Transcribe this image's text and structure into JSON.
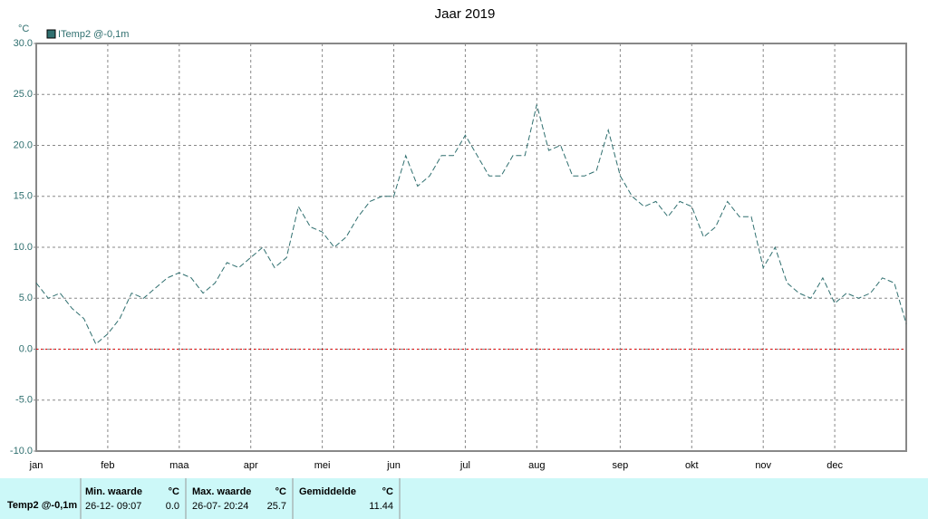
{
  "chart_data": {
    "type": "line",
    "title": "Jaar 2019",
    "y_unit": "°C",
    "categories": [
      "jan",
      null,
      null,
      null,
      null,
      null,
      "feb",
      null,
      null,
      null,
      null,
      null,
      "maa",
      null,
      null,
      null,
      null,
      null,
      "apr",
      null,
      null,
      null,
      null,
      null,
      "mei",
      null,
      null,
      null,
      null,
      null,
      "jun",
      null,
      null,
      null,
      null,
      null,
      "jul",
      null,
      null,
      null,
      null,
      null,
      "aug",
      null,
      null,
      null,
      null,
      null,
      null,
      "sep",
      null,
      null,
      null,
      null,
      null,
      "okt",
      null,
      null,
      null,
      null,
      null,
      "nov",
      null,
      null,
      null,
      null,
      null,
      "dec",
      null,
      null,
      null,
      null,
      null,
      null
    ],
    "series": [
      {
        "name": "ITemp2 @-0,1m",
        "color": "#2f6f6f",
        "values": [
          6.5,
          5,
          5.5,
          4,
          3,
          0.5,
          1.5,
          3,
          5.5,
          5,
          6,
          7,
          7.5,
          7,
          5.5,
          6.5,
          8.5,
          8,
          9,
          10,
          8,
          9,
          14,
          12,
          11.5,
          10,
          11,
          13,
          14.5,
          15,
          15,
          19,
          16,
          17,
          19,
          19,
          21,
          19,
          17,
          17,
          19,
          19,
          24,
          19.5,
          20,
          17,
          17,
          17.5,
          21.5,
          17,
          15,
          14,
          14.5,
          13,
          14.5,
          14,
          11,
          12,
          14.5,
          13,
          13,
          8,
          10,
          6.5,
          5.5,
          5,
          7,
          4.5,
          5.5,
          5,
          5.5,
          7,
          6.5,
          2.5
        ]
      }
    ],
    "ylim": [
      -10,
      30
    ],
    "yticks": [
      {
        "value": -10,
        "label": "-10.0"
      },
      {
        "value": -5,
        "label": "-5.0"
      },
      {
        "value": 0,
        "label": "0.0"
      },
      {
        "value": 5,
        "label": "5.0"
      },
      {
        "value": 10,
        "label": "10.0"
      },
      {
        "value": 15,
        "label": "15.0"
      },
      {
        "value": 20,
        "label": "20.0"
      },
      {
        "value": 25,
        "label": "25.0"
      },
      {
        "value": 30,
        "label": "30.0"
      }
    ],
    "grid": true,
    "reference_line": {
      "value": 0,
      "color": "#e00000"
    }
  },
  "stats_table": {
    "row_label": "Temp2 @-0,1m",
    "min": {
      "header": "Min. waarde",
      "unit": "°C",
      "time": "26-12- 09:07",
      "value": "0.0"
    },
    "max": {
      "header": "Max. waarde",
      "unit": "°C",
      "time": "26-07- 20:24",
      "value": "25.7"
    },
    "avg": {
      "header": "Gemiddelde",
      "unit": "°C",
      "value": "11.44"
    }
  }
}
